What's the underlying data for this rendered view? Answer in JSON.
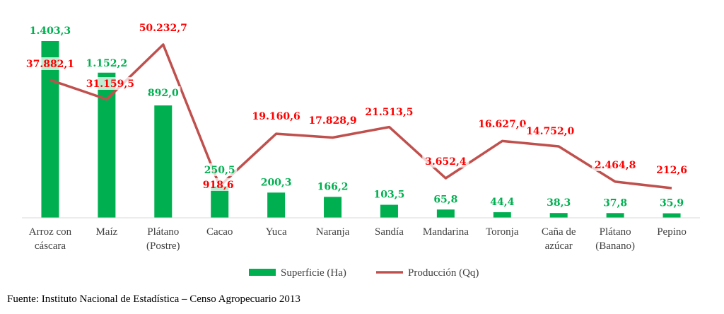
{
  "chart_data": {
    "type": "bar",
    "categories": [
      [
        "Arroz con",
        "cáscara"
      ],
      [
        "Maíz"
      ],
      [
        "Plátano",
        "(Postre)"
      ],
      [
        "Cacao"
      ],
      [
        "Yuca"
      ],
      [
        "Naranja"
      ],
      [
        "Sandía"
      ],
      [
        "Mandarina"
      ],
      [
        "Toronja"
      ],
      [
        "Caña de",
        "azúcar"
      ],
      [
        "Plátano",
        "(Banano)"
      ],
      [
        "Pepino"
      ]
    ],
    "series": [
      {
        "name": "Superficie (Ha)",
        "kind": "bar",
        "color": "#00b050",
        "values": [
          1403.3,
          1152.2,
          892.0,
          250.5,
          200.3,
          166.2,
          103.5,
          65.8,
          44.4,
          38.3,
          37.8,
          35.9
        ],
        "labels": [
          "1.403,3",
          "1.152,2",
          "892,0",
          "250,5",
          "200,3",
          "166,2",
          "103,5",
          "65,8",
          "44,4",
          "38,3",
          "37,8",
          "35,9"
        ]
      },
      {
        "name": "Producción (Qq)",
        "kind": "line",
        "color": "#c0504d",
        "values": [
          37882.1,
          31159.5,
          50232.7,
          918.6,
          19160.6,
          17828.9,
          21513.5,
          3652.4,
          16627.0,
          14752.0,
          2464.8,
          212.6
        ],
        "labels": [
          "37.882,1",
          "31.159,5",
          "50.232,7",
          "918,6",
          "19.160,6",
          "17.828,9",
          "21.513,5",
          "3.652,4",
          "16.627,0",
          "14.752,0",
          "2.464,8",
          "212,6"
        ]
      }
    ],
    "bar_label_color": "#00b050",
    "line_label_color": "#ff0000",
    "legend_position": "bottom",
    "grid": false
  },
  "source_note": "Fuente: Instituto Nacional de Estadística – Censo Agropecuario 2013"
}
